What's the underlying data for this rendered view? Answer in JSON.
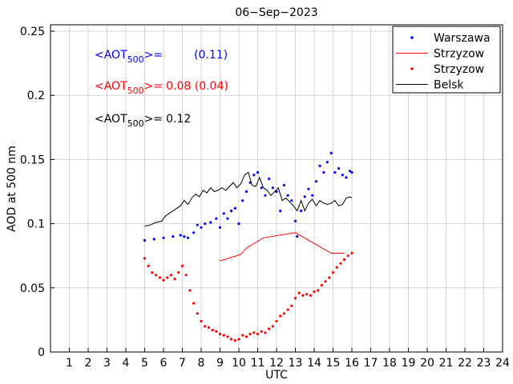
{
  "chart_data": {
    "type": "line",
    "title": "06−Sep−2023",
    "xlabel": "UTC",
    "ylabel": "AOD at 500 nm",
    "xlim": [
      0,
      24
    ],
    "ylim": [
      0,
      0.255
    ],
    "x_ticks": [
      1,
      2,
      3,
      4,
      5,
      6,
      7,
      8,
      9,
      10,
      11,
      12,
      13,
      14,
      15,
      16,
      17,
      18,
      19,
      20,
      21,
      22,
      23,
      24
    ],
    "y_ticks": [
      0,
      0.05,
      0.1,
      0.15,
      0.2,
      0.25
    ],
    "y_tick_labels": [
      "0",
      "0.05",
      "0.1",
      "0.15",
      "0.2",
      "0.25"
    ],
    "grid": true,
    "legend_position": "top-right",
    "legend": [
      {
        "label": "Warszawa",
        "style": "dots",
        "color": "#0000ff"
      },
      {
        "label": "Strzyzow",
        "style": "line",
        "color": "#ff0000"
      },
      {
        "label": "Strzyzow",
        "style": "dots",
        "color": "#ff0000"
      },
      {
        "label": "Belsk",
        "style": "line",
        "color": "#000000"
      }
    ],
    "annotations": [
      {
        "prefix": "<AOT",
        "sub": "500",
        "suffix": ">=",
        "value": "(0.11)",
        "color": "#0000ff"
      },
      {
        "prefix": "<AOT",
        "sub": "500",
        "suffix": ">=",
        "value": "0.08 (0.04)",
        "color": "#ff0000"
      },
      {
        "prefix": "<AOT",
        "sub": "500",
        "suffix": ">=",
        "value": "0.12",
        "color": "#000000"
      }
    ],
    "series": [
      {
        "name": "Warszawa",
        "kind": "dots",
        "color": "#0000ff",
        "points": [
          [
            5.0,
            0.087
          ],
          [
            5.5,
            0.088
          ],
          [
            6.0,
            0.089
          ],
          [
            6.5,
            0.09
          ],
          [
            6.9,
            0.091
          ],
          [
            7.1,
            0.09
          ],
          [
            7.3,
            0.089
          ],
          [
            7.6,
            0.093
          ],
          [
            7.8,
            0.099
          ],
          [
            8.0,
            0.097
          ],
          [
            8.2,
            0.1
          ],
          [
            8.5,
            0.101
          ],
          [
            8.8,
            0.104
          ],
          [
            9.0,
            0.097
          ],
          [
            9.2,
            0.108
          ],
          [
            9.4,
            0.104
          ],
          [
            9.6,
            0.11
          ],
          [
            9.8,
            0.112
          ],
          [
            10.0,
            0.1
          ],
          [
            10.2,
            0.118
          ],
          [
            10.4,
            0.125
          ],
          [
            10.6,
            0.132
          ],
          [
            10.8,
            0.138
          ],
          [
            11.0,
            0.14
          ],
          [
            11.2,
            0.128
          ],
          [
            11.4,
            0.122
          ],
          [
            11.6,
            0.135
          ],
          [
            11.8,
            0.128
          ],
          [
            12.0,
            0.125
          ],
          [
            12.2,
            0.11
          ],
          [
            12.4,
            0.13
          ],
          [
            12.6,
            0.122
          ],
          [
            12.8,
            0.118
          ],
          [
            13.0,
            0.102
          ],
          [
            13.1,
            0.09
          ],
          [
            13.3,
            0.11
          ],
          [
            13.5,
            0.121
          ],
          [
            13.7,
            0.127
          ],
          [
            13.9,
            0.122
          ],
          [
            14.1,
            0.133
          ],
          [
            14.3,
            0.145
          ],
          [
            14.5,
            0.14
          ],
          [
            14.7,
            0.148
          ],
          [
            14.9,
            0.155
          ],
          [
            15.1,
            0.14
          ],
          [
            15.3,
            0.143
          ],
          [
            15.5,
            0.138
          ],
          [
            15.7,
            0.136
          ],
          [
            15.9,
            0.141
          ],
          [
            16.0,
            0.14
          ]
        ]
      },
      {
        "name": "Strzyzow",
        "kind": "line",
        "color": "#ff0000",
        "points": [
          [
            9.0,
            0.071
          ],
          [
            10.1,
            0.076
          ],
          [
            10.4,
            0.081
          ],
          [
            11.3,
            0.089
          ],
          [
            13.0,
            0.093
          ],
          [
            14.9,
            0.077
          ],
          [
            15.6,
            0.077
          ]
        ]
      },
      {
        "name": "Strzyzow",
        "kind": "dots",
        "color": "#ff0000",
        "points": [
          [
            5.0,
            0.073
          ],
          [
            5.2,
            0.067
          ],
          [
            5.4,
            0.062
          ],
          [
            5.6,
            0.06
          ],
          [
            5.8,
            0.058
          ],
          [
            6.0,
            0.056
          ],
          [
            6.2,
            0.058
          ],
          [
            6.4,
            0.06
          ],
          [
            6.6,
            0.057
          ],
          [
            6.8,
            0.062
          ],
          [
            7.0,
            0.067
          ],
          [
            7.2,
            0.06
          ],
          [
            7.4,
            0.048
          ],
          [
            7.6,
            0.038
          ],
          [
            7.8,
            0.03
          ],
          [
            8.0,
            0.024
          ],
          [
            8.2,
            0.02
          ],
          [
            8.4,
            0.019
          ],
          [
            8.6,
            0.017
          ],
          [
            8.8,
            0.016
          ],
          [
            9.0,
            0.014
          ],
          [
            9.2,
            0.013
          ],
          [
            9.4,
            0.012
          ],
          [
            9.6,
            0.01
          ],
          [
            9.8,
            0.009
          ],
          [
            10.0,
            0.01
          ],
          [
            10.2,
            0.013
          ],
          [
            10.4,
            0.012
          ],
          [
            10.6,
            0.014
          ],
          [
            10.8,
            0.015
          ],
          [
            11.0,
            0.014
          ],
          [
            11.2,
            0.016
          ],
          [
            11.4,
            0.015
          ],
          [
            11.6,
            0.018
          ],
          [
            11.8,
            0.02
          ],
          [
            12.0,
            0.024
          ],
          [
            12.2,
            0.028
          ],
          [
            12.4,
            0.03
          ],
          [
            12.6,
            0.033
          ],
          [
            12.8,
            0.036
          ],
          [
            13.0,
            0.042
          ],
          [
            13.2,
            0.046
          ],
          [
            13.4,
            0.044
          ],
          [
            13.6,
            0.045
          ],
          [
            13.8,
            0.044
          ],
          [
            14.0,
            0.047
          ],
          [
            14.2,
            0.048
          ],
          [
            14.4,
            0.052
          ],
          [
            14.6,
            0.055
          ],
          [
            14.8,
            0.058
          ],
          [
            15.0,
            0.062
          ],
          [
            15.2,
            0.066
          ],
          [
            15.4,
            0.069
          ],
          [
            15.6,
            0.072
          ],
          [
            15.8,
            0.075
          ],
          [
            16.0,
            0.077
          ]
        ]
      },
      {
        "name": "Belsk",
        "kind": "line",
        "color": "#000000",
        "points": [
          [
            5.0,
            0.098
          ],
          [
            5.3,
            0.099
          ],
          [
            5.6,
            0.101
          ],
          [
            5.9,
            0.102
          ],
          [
            6.1,
            0.106
          ],
          [
            6.4,
            0.109
          ],
          [
            6.7,
            0.112
          ],
          [
            6.9,
            0.114
          ],
          [
            7.1,
            0.118
          ],
          [
            7.3,
            0.115
          ],
          [
            7.5,
            0.12
          ],
          [
            7.7,
            0.123
          ],
          [
            7.9,
            0.121
          ],
          [
            8.1,
            0.126
          ],
          [
            8.3,
            0.124
          ],
          [
            8.5,
            0.128
          ],
          [
            8.7,
            0.125
          ],
          [
            8.9,
            0.126
          ],
          [
            9.1,
            0.128
          ],
          [
            9.3,
            0.126
          ],
          [
            9.5,
            0.129
          ],
          [
            9.7,
            0.132
          ],
          [
            9.9,
            0.128
          ],
          [
            10.1,
            0.131
          ],
          [
            10.3,
            0.138
          ],
          [
            10.5,
            0.14
          ],
          [
            10.7,
            0.13
          ],
          [
            10.9,
            0.129
          ],
          [
            11.1,
            0.136
          ],
          [
            11.3,
            0.128
          ],
          [
            11.5,
            0.126
          ],
          [
            11.7,
            0.122
          ],
          [
            11.9,
            0.125
          ],
          [
            12.1,
            0.128
          ],
          [
            12.3,
            0.118
          ],
          [
            12.5,
            0.12
          ],
          [
            12.7,
            0.117
          ],
          [
            12.9,
            0.114
          ],
          [
            13.1,
            0.11
          ],
          [
            13.3,
            0.118
          ],
          [
            13.5,
            0.11
          ],
          [
            13.7,
            0.116
          ],
          [
            13.9,
            0.119
          ],
          [
            14.1,
            0.114
          ],
          [
            14.3,
            0.118
          ],
          [
            14.5,
            0.116
          ],
          [
            14.7,
            0.115
          ],
          [
            14.9,
            0.116
          ],
          [
            15.1,
            0.118
          ],
          [
            15.3,
            0.114
          ],
          [
            15.5,
            0.115
          ],
          [
            15.7,
            0.12
          ],
          [
            15.9,
            0.121
          ],
          [
            16.0,
            0.12
          ]
        ]
      }
    ]
  }
}
